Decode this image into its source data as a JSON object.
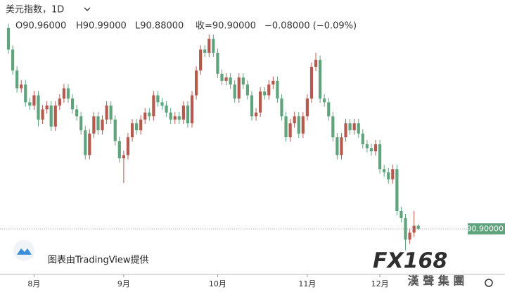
{
  "chart_data": {
    "type": "candlestick",
    "title": "美元指数，1D",
    "legend": {
      "open": "O90.96000",
      "high": "H90.99000",
      "low": "L90.88000",
      "close": "收=90.90000",
      "change": "−0.08000 (−0.09%)"
    },
    "last_price_label": "90.90000",
    "attribution": "图表由TradingView提供",
    "watermark": {
      "brand": "FX168",
      "group": "漢 聲 集 團"
    },
    "up_color": "#b55a4e",
    "down_color": "#5fa47c",
    "ylim": [
      90.25,
      95.15
    ],
    "categories": [
      null,
      null,
      null,
      null,
      null,
      null,
      "8月",
      null,
      null,
      null,
      null,
      null,
      null,
      null,
      null,
      null,
      null,
      null,
      null,
      null,
      null,
      null,
      null,
      null,
      null,
      null,
      null,
      "9月",
      null,
      null,
      null,
      null,
      null,
      null,
      null,
      null,
      null,
      null,
      null,
      null,
      null,
      null,
      null,
      null,
      null,
      null,
      null,
      null,
      null,
      "10月",
      null,
      null,
      null,
      null,
      null,
      null,
      null,
      null,
      null,
      null,
      null,
      null,
      null,
      null,
      null,
      null,
      null,
      null,
      null,
      null,
      "11月",
      null,
      null,
      null,
      null,
      null,
      null,
      null,
      null,
      null,
      null,
      null,
      null,
      null,
      null,
      null,
      null,
      "12月",
      null,
      null,
      null,
      null,
      null,
      null,
      null,
      null,
      null
    ],
    "open": [
      94.63,
      94.23,
      93.84,
      93.51,
      93.58,
      93.25,
      93.19,
      93.38,
      92.93,
      93.12,
      93.19,
      92.8,
      93.19,
      93.32,
      93.51,
      93.32,
      93.12,
      92.99,
      92.73,
      92.27,
      92.67,
      92.99,
      92.73,
      92.93,
      93.19,
      92.93,
      92.53,
      92.21,
      92.27,
      92.6,
      92.86,
      92.73,
      92.93,
      93.06,
      92.99,
      93.38,
      93.25,
      93.19,
      93.06,
      92.93,
      92.99,
      92.93,
      93.19,
      92.86,
      93.38,
      93.84,
      94.23,
      94.17,
      94.43,
      94.17,
      93.78,
      93.65,
      93.71,
      93.58,
      93.32,
      93.71,
      93.58,
      93.38,
      92.99,
      93.06,
      93.45,
      93.38,
      93.58,
      93.65,
      93.32,
      92.99,
      92.6,
      92.86,
      92.99,
      92.67,
      92.99,
      93.32,
      93.91,
      94.04,
      93.32,
      93.25,
      92.99,
      92.6,
      92.27,
      92.6,
      92.86,
      92.73,
      92.86,
      92.67,
      92.47,
      92.4,
      92.34,
      92.47,
      92.01,
      91.95,
      91.82,
      92.01,
      91.23,
      91.1,
      90.7,
      90.83,
      90.96
    ],
    "high": [
      94.71,
      94.31,
      93.92,
      93.66,
      93.66,
      93.33,
      93.46,
      93.46,
      93.2,
      93.27,
      93.27,
      93.27,
      93.4,
      93.59,
      93.59,
      93.4,
      93.2,
      93.07,
      92.81,
      92.75,
      93.07,
      93.07,
      93.01,
      93.27,
      93.27,
      93.01,
      92.61,
      92.35,
      92.68,
      92.94,
      92.94,
      93.01,
      93.14,
      93.14,
      93.46,
      93.46,
      93.33,
      93.27,
      93.14,
      93.07,
      93.07,
      93.27,
      93.27,
      93.46,
      93.92,
      94.31,
      94.31,
      94.51,
      94.51,
      94.25,
      93.86,
      93.79,
      93.79,
      93.66,
      93.79,
      93.79,
      93.66,
      93.46,
      93.14,
      93.53,
      93.53,
      93.66,
      93.73,
      93.73,
      93.4,
      93.07,
      92.94,
      93.07,
      93.07,
      93.07,
      93.4,
      93.99,
      94.17,
      94.12,
      93.4,
      93.33,
      93.07,
      92.68,
      92.68,
      92.94,
      92.94,
      92.94,
      92.94,
      92.75,
      92.55,
      92.48,
      92.55,
      92.55,
      92.09,
      92.03,
      92.09,
      92.09,
      91.31,
      91.18,
      90.91,
      91.23,
      90.99
    ],
    "low": [
      94.15,
      93.76,
      93.43,
      93.43,
      93.17,
      93.11,
      93.11,
      92.8,
      92.85,
      93.04,
      92.72,
      92.72,
      93.11,
      93.24,
      93.24,
      93.04,
      92.91,
      92.65,
      92.19,
      92.19,
      92.59,
      92.65,
      92.65,
      92.85,
      92.85,
      92.45,
      92.13,
      91.75,
      92.19,
      92.52,
      92.65,
      92.65,
      92.85,
      92.91,
      92.91,
      93.17,
      93.11,
      92.98,
      92.85,
      92.85,
      92.85,
      92.85,
      92.78,
      92.78,
      93.3,
      93.76,
      94.09,
      94.09,
      94.09,
      93.7,
      93.57,
      93.57,
      93.5,
      93.24,
      93.24,
      93.5,
      93.3,
      92.91,
      92.91,
      92.98,
      93.3,
      93.3,
      93.5,
      93.24,
      92.91,
      92.52,
      92.52,
      92.78,
      92.59,
      92.59,
      92.91,
      93.24,
      93.83,
      93.24,
      93.17,
      92.91,
      92.52,
      92.19,
      92.19,
      92.52,
      92.65,
      92.65,
      92.59,
      92.39,
      92.32,
      92.26,
      92.26,
      91.93,
      91.87,
      91.74,
      91.74,
      91.15,
      91.02,
      90.5,
      90.62,
      90.75,
      90.88
    ],
    "close": [
      94.23,
      93.84,
      93.51,
      93.58,
      93.25,
      93.19,
      93.38,
      92.93,
      93.12,
      93.19,
      92.8,
      93.19,
      93.32,
      93.51,
      93.32,
      93.12,
      92.99,
      92.73,
      92.27,
      92.67,
      92.99,
      92.73,
      92.93,
      93.19,
      92.93,
      92.53,
      92.21,
      92.27,
      92.6,
      92.86,
      92.73,
      92.93,
      93.06,
      92.99,
      93.38,
      93.25,
      93.19,
      93.06,
      92.93,
      92.99,
      92.93,
      93.19,
      92.86,
      93.38,
      93.84,
      94.23,
      94.17,
      94.43,
      94.17,
      93.78,
      93.65,
      93.71,
      93.58,
      93.32,
      93.71,
      93.58,
      93.38,
      92.99,
      93.06,
      93.45,
      93.38,
      93.58,
      93.65,
      93.32,
      92.99,
      92.6,
      92.86,
      92.99,
      92.67,
      92.99,
      93.32,
      93.91,
      94.04,
      93.32,
      93.25,
      92.99,
      92.6,
      92.27,
      92.6,
      92.86,
      92.73,
      92.86,
      92.67,
      92.47,
      92.4,
      92.34,
      92.47,
      92.01,
      91.95,
      91.82,
      92.01,
      91.23,
      91.1,
      90.7,
      90.83,
      90.96,
      90.9
    ]
  }
}
